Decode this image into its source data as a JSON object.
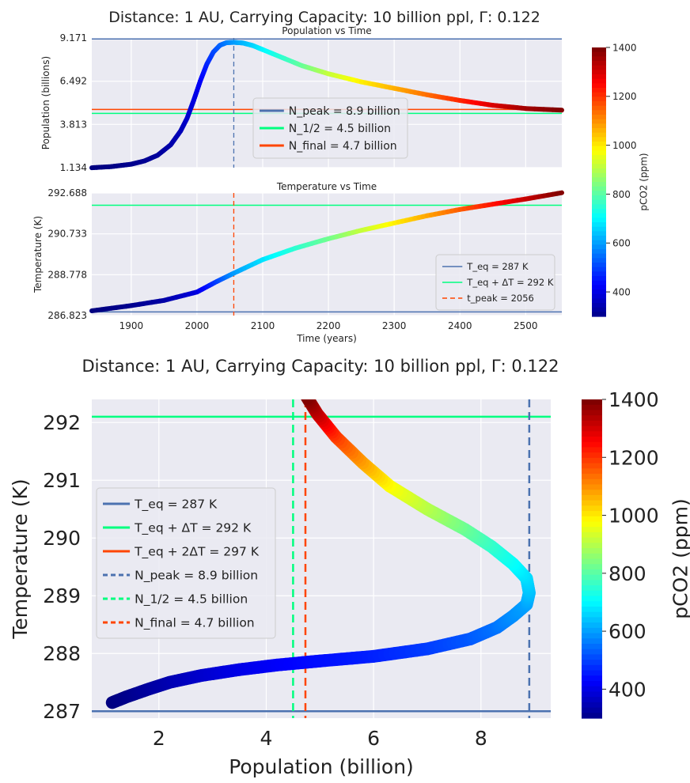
{
  "figure": {
    "top_title": "Distance: 1 AU,  Carrying Capacity: 10 billion ppl,  Γ:  0.122",
    "bottom_title": "Distance: 1 AU,  Carrying Capacity: 10 billion ppl,    Γ:  0.122"
  },
  "chart_data": [
    {
      "type": "line",
      "title": "Population vs Time",
      "xlabel": "",
      "ylabel": "Population (billions)",
      "xlim": [
        1840,
        2555
      ],
      "ylim": [
        1.134,
        9.171
      ],
      "yticks": [
        "1.134",
        "3.813",
        "6.492",
        "9.171"
      ],
      "grid": true,
      "colormap": "jet",
      "color_range": [
        300,
        1400
      ],
      "series": [
        {
          "x": [
            1840,
            1870,
            1900,
            1920,
            1940,
            1960,
            1975,
            1985,
            1995,
            2005,
            2015,
            2025,
            2035,
            2045,
            2056,
            2070,
            2085,
            2100,
            2130,
            2160,
            2200,
            2250,
            2300,
            2350,
            2400,
            2450,
            2500,
            2555
          ],
          "y": [
            1.13,
            1.2,
            1.35,
            1.55,
            1.9,
            2.55,
            3.4,
            4.2,
            5.3,
            6.5,
            7.55,
            8.3,
            8.72,
            8.88,
            8.9,
            8.86,
            8.7,
            8.45,
            7.95,
            7.45,
            6.95,
            6.45,
            6.05,
            5.65,
            5.3,
            5.0,
            4.8,
            4.7
          ],
          "pco2": [
            300,
            305,
            315,
            320,
            330,
            345,
            360,
            380,
            400,
            430,
            470,
            510,
            540,
            570,
            600,
            630,
            660,
            700,
            760,
            820,
            920,
            1000,
            1070,
            1140,
            1220,
            1300,
            1360,
            1400
          ]
        }
      ],
      "hlines": [
        9.171,
        4.7,
        4.5
      ],
      "vlines": [
        2056
      ],
      "legend": {
        "placement": "center-right",
        "entries": [
          {
            "label": "N_peak = 8.9 billion",
            "color": "#4c72b0"
          },
          {
            "label": "N_1/2 = 4.5 billion",
            "color": "#00ff7f"
          },
          {
            "label": "N_final = 4.7 billion",
            "color": "#ff4500"
          }
        ]
      }
    },
    {
      "type": "line",
      "title": "Temperature vs Time",
      "xlabel": "Time (years)",
      "ylabel": "Temperature (K)",
      "xlim": [
        1840,
        2555
      ],
      "ylim": [
        286.823,
        292.688
      ],
      "xticks": [
        1900,
        2000,
        2100,
        2200,
        2300,
        2400,
        2500
      ],
      "yticks": [
        "286.823",
        "288.778",
        "290.733",
        "292.688"
      ],
      "grid": true,
      "series": [
        {
          "x": [
            1840,
            1900,
            1950,
            2000,
            2030,
            2056,
            2100,
            2150,
            2200,
            2250,
            2300,
            2350,
            2400,
            2450,
            2500,
            2555
          ],
          "y": [
            287.05,
            287.3,
            287.55,
            287.95,
            288.45,
            288.85,
            289.5,
            290.05,
            290.5,
            290.9,
            291.25,
            291.6,
            291.9,
            292.15,
            292.4,
            292.7
          ],
          "pco2": [
            300,
            315,
            340,
            400,
            500,
            600,
            680,
            760,
            830,
            920,
            1000,
            1080,
            1160,
            1240,
            1320,
            1400
          ]
        }
      ],
      "hlines": [
        287.0,
        292.1
      ],
      "vlines": [
        2056
      ],
      "legend": {
        "placement": "lower-right",
        "entries": [
          {
            "label": "T_eq = 287 K",
            "color": "#4c72b0",
            "dash": false
          },
          {
            "label": "T_eq + ΔT = 292 K",
            "color": "#00ff7f",
            "dash": false
          },
          {
            "label": "t_peak = 2056",
            "color": "#ff4500",
            "dash": true
          }
        ]
      }
    },
    {
      "type": "scatter",
      "title": "",
      "xlabel": "Population (billion)",
      "ylabel": "Temperature (K)",
      "xlim": [
        0.75,
        9.3
      ],
      "ylim": [
        286.88,
        292.4
      ],
      "xticks": [
        2,
        4,
        6,
        8
      ],
      "yticks": [
        287,
        288,
        289,
        290,
        291,
        292
      ],
      "grid": true,
      "series": [
        {
          "x": [
            1.13,
            1.4,
            1.8,
            2.2,
            2.8,
            3.5,
            4.2,
            5.0,
            6.0,
            7.0,
            7.8,
            8.3,
            8.6,
            8.85,
            8.9,
            8.85,
            8.6,
            8.2,
            7.7,
            7.0,
            6.3,
            5.8,
            5.3,
            4.95,
            4.75
          ],
          "y": [
            287.15,
            287.25,
            287.38,
            287.5,
            287.62,
            287.72,
            287.8,
            287.87,
            287.95,
            288.08,
            288.25,
            288.45,
            288.65,
            288.85,
            289.05,
            289.3,
            289.55,
            289.85,
            290.15,
            290.5,
            290.9,
            291.3,
            291.75,
            292.15,
            292.45
          ],
          "pco2": [
            300,
            310,
            330,
            350,
            380,
            410,
            430,
            450,
            470,
            500,
            530,
            560,
            590,
            610,
            640,
            670,
            710,
            760,
            820,
            900,
            980,
            1080,
            1190,
            1320,
            1400
          ]
        }
      ],
      "hlines": [
        287.0,
        292.1
      ],
      "vlines": [
        8.9,
        4.5,
        4.73
      ],
      "legend": {
        "placement": "center-left",
        "entries": [
          {
            "label": "T_eq = 287 K",
            "color": "#4c72b0",
            "dash": false
          },
          {
            "label": "T_eq + ΔT = 292 K",
            "color": "#00ff7f",
            "dash": false
          },
          {
            "label": "T_eq + 2ΔT = 297 K",
            "color": "#ff4500",
            "dash": false
          },
          {
            "label": "N_peak = 8.9 billion",
            "color": "#4c72b0",
            "dash": true
          },
          {
            "label": "N_1/2 = 4.5 billion",
            "color": "#00ff7f",
            "dash": true
          },
          {
            "label": "N_final = 4.7 billion",
            "color": "#ff4500",
            "dash": true
          }
        ]
      }
    }
  ],
  "colorbar_top": {
    "label": "pCO2 (ppm)",
    "ticks": [
      400,
      600,
      800,
      1000,
      1200,
      1400
    ],
    "range": [
      300,
      1400
    ]
  },
  "colorbar_bottom": {
    "label": "pCO2 (ppm)",
    "ticks": [
      400,
      600,
      800,
      1000,
      1200,
      1400
    ],
    "range": [
      300,
      1400
    ]
  },
  "colors": {
    "axes_bg": "#eaeaf2",
    "grid": "#ffffff",
    "blue": "#4c72b0",
    "green": "#00ff7f",
    "orange": "#ff4500"
  }
}
